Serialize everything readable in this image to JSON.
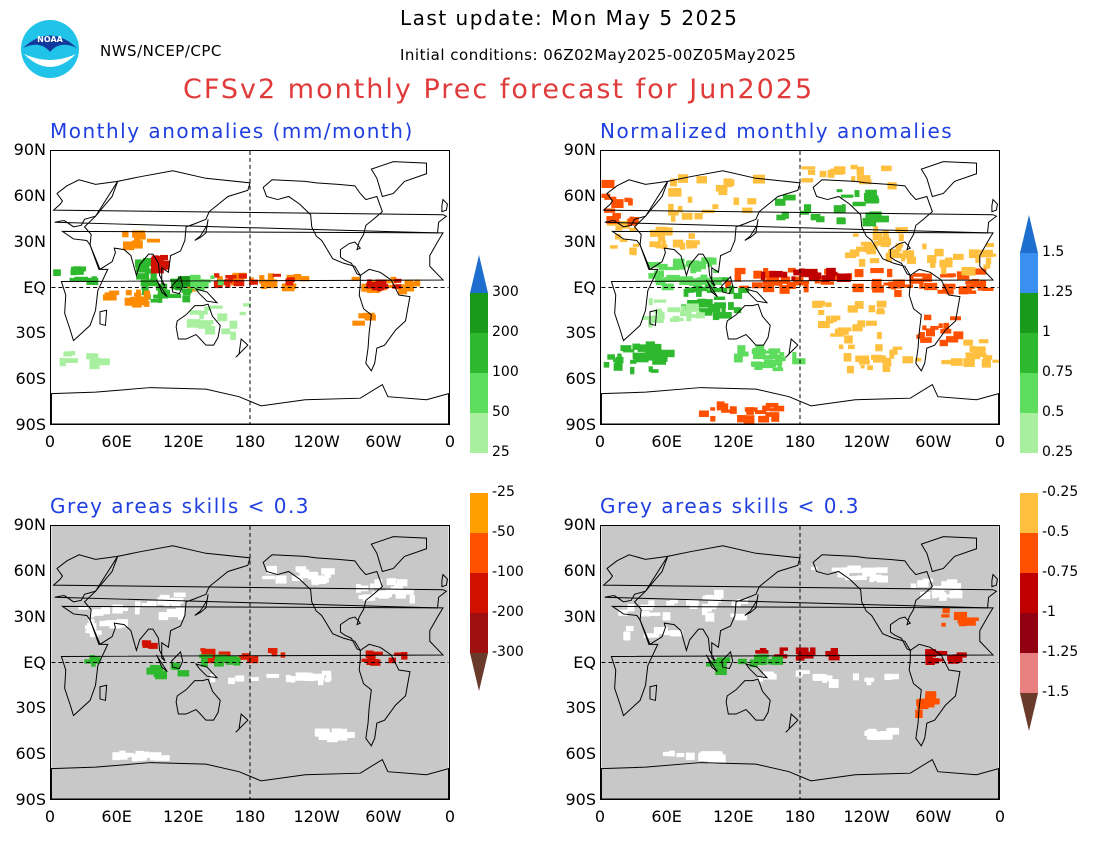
{
  "header": {
    "org": "NWS/NCEP/CPC",
    "last_update": "Last update: Mon May  5 2025",
    "init_conditions": "Initial conditions: 06Z02May2025-00Z05May2025",
    "title": "CFSv2 monthly Prec forecast for Jun2025",
    "logo_text": "NOAA"
  },
  "panels": [
    {
      "id": "top-left",
      "title": "Monthly anomalies (mm/month)",
      "grey_background": false
    },
    {
      "id": "top-right",
      "title": "Normalized monthly anomalies",
      "grey_background": false
    },
    {
      "id": "bottom-left",
      "title": "Grey areas skills < 0.3",
      "grey_background": true
    },
    {
      "id": "bottom-right",
      "title": "Grey areas skills < 0.3",
      "grey_background": true
    }
  ],
  "axes": {
    "lat_ticks": [
      "90N",
      "60N",
      "30N",
      "EQ",
      "30S",
      "60S",
      "90S"
    ],
    "lon_ticks": [
      "0",
      "60E",
      "120E",
      "180",
      "120W",
      "60W",
      "0"
    ]
  },
  "colorbar_left": {
    "labels": [
      "300",
      "200",
      "100",
      "50",
      "25",
      "-25",
      "-50",
      "-100",
      "-200",
      "-300"
    ],
    "colors_top_to_bottom": [
      "#1e6ed0",
      "#1a9a1a",
      "#2eb82e",
      "#5ddc5d",
      "#a8f0a0",
      "#ffffff",
      "#ffa000",
      "#ff5000",
      "#d01000",
      "#a01010",
      "#6a3a2a"
    ]
  },
  "colorbar_right": {
    "labels": [
      "1.5",
      "1.25",
      "1",
      "0.75",
      "0.5",
      "0.25",
      "-0.25",
      "-0.5",
      "-0.75",
      "-1",
      "-1.25",
      "-1.5"
    ],
    "colors_top_to_bottom": [
      "#1e6ed0",
      "#3a90f0",
      "#1a9a1a",
      "#2eb82e",
      "#5ddc5d",
      "#a8f0a0",
      "#ffffff",
      "#ffc040",
      "#ff5000",
      "#c00000",
      "#900010",
      "#e88080",
      "#6a3a2a"
    ]
  },
  "colors": {
    "title_red": "#e03a3a",
    "panel_title_blue": "#1f3fe0",
    "grey_mask": "#c8c8c8"
  }
}
